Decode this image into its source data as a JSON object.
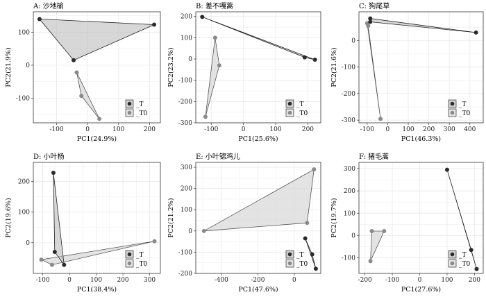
{
  "colors": {
    "T_point": "#2b2b2b",
    "T0_point": "#8a8a8a",
    "T_hull_fill": "#bdbdbd",
    "T0_hull_fill": "#d9d9d9",
    "grid": "#ebebeb"
  },
  "chart_data": [
    {
      "type": "scatter",
      "title": "A: 沙地榆",
      "xlabel": "PC1(24.9%)",
      "ylabel": "PC2(21.9%)",
      "xlim": [
        -175,
        235
      ],
      "ylim": [
        -175,
        162
      ],
      "xticks": [
        -100,
        0,
        100,
        200
      ],
      "yticks": [
        -100,
        0,
        100
      ],
      "legend": "bottom-right",
      "series": [
        {
          "name": "_T",
          "points": [
            [
              -155,
              140
            ],
            [
              215,
              123
            ],
            [
              -45,
              15
            ]
          ]
        },
        {
          "name": "_T0",
          "points": [
            [
              -35,
              -22
            ],
            [
              -20,
              -93
            ],
            [
              38,
              -163
            ]
          ]
        }
      ]
    },
    {
      "type": "scatter",
      "title": "B: 差不嘎蒿",
      "xlabel": "PC1(25.6%)",
      "ylabel": "PC2(23.2%)",
      "xlim": [
        -148,
        240
      ],
      "ylim": [
        -300,
        222
      ],
      "xticks": [
        -100,
        0,
        100,
        200
      ],
      "yticks": [
        -300,
        -200,
        -100,
        0,
        100,
        200
      ],
      "legend": "bottom-right",
      "series": [
        {
          "name": "_T",
          "points": [
            [
              -128,
              198
            ],
            [
              190,
              8
            ],
            [
              222,
              -3
            ]
          ]
        },
        {
          "name": "_T0",
          "points": [
            [
              -88,
              100
            ],
            [
              -75,
              -30
            ],
            [
              -118,
              -272
            ]
          ]
        }
      ]
    },
    {
      "type": "scatter",
      "title": "C: 狗尾草",
      "xlabel": "PC1(46.3%)",
      "ylabel": "PC2(21.6%)",
      "xlim": [
        -140,
        465
      ],
      "ylim": [
        -310,
        108
      ],
      "xticks": [
        -100,
        0,
        100,
        200,
        300,
        400
      ],
      "yticks": [
        -300,
        -200,
        -100,
        0
      ],
      "legend": "bottom-right",
      "series": [
        {
          "name": "_T",
          "points": [
            [
              -85,
              83
            ],
            [
              -85,
              70
            ],
            [
              430,
              30
            ]
          ]
        },
        {
          "name": "_T0",
          "points": [
            [
              -100,
              65
            ],
            [
              -95,
              55
            ],
            [
              -35,
              -295
            ]
          ]
        }
      ]
    },
    {
      "type": "scatter",
      "title": "D: 小叶杨",
      "xlabel": "PC1(38.4%)",
      "ylabel": "PC2(19.6%)",
      "xlim": [
        -135,
        340
      ],
      "ylim": [
        -100,
        262
      ],
      "xticks": [
        -100,
        0,
        100,
        200,
        300
      ],
      "yticks": [
        0,
        100,
        200
      ],
      "legend": "bottom-right",
      "series": [
        {
          "name": "_T",
          "points": [
            [
              -60,
              228
            ],
            [
              -55,
              -30
            ],
            [
              -20,
              -72
            ]
          ]
        },
        {
          "name": "_T0",
          "points": [
            [
              -105,
              -55
            ],
            [
              -65,
              -72
            ],
            [
              318,
              5
            ]
          ]
        }
      ]
    },
    {
      "type": "scatter",
      "title": "E: 小叶锦鸡儿",
      "xlabel": "PC1(47.6%)",
      "ylabel": "PC2(21.2%)",
      "xlim": [
        -540,
        145
      ],
      "ylim": [
        -200,
        323
      ],
      "xticks": [
        -400,
        -200,
        0
      ],
      "yticks": [
        -200,
        -100,
        0,
        100,
        200,
        300
      ],
      "legend": "bottom-right",
      "series": [
        {
          "name": "_T",
          "points": [
            [
              60,
              -35
            ],
            [
              98,
              -110
            ],
            [
              118,
              -178
            ]
          ]
        },
        {
          "name": "_T0",
          "points": [
            [
              -495,
              0
            ],
            [
              70,
              38
            ],
            [
              108,
              290
            ]
          ]
        }
      ]
    },
    {
      "type": "scatter",
      "title": "F: 猪毛蒿",
      "xlabel": "PC1(27.6%)",
      "ylabel": "PC2(19.7%)",
      "xlim": [
        -222,
        232
      ],
      "ylim": [
        -170,
        328
      ],
      "xticks": [
        -200,
        -100,
        0,
        100,
        200
      ],
      "yticks": [
        -100,
        0,
        100,
        200,
        300
      ],
      "legend": "bottom-right",
      "series": [
        {
          "name": "_T",
          "points": [
            [
              100,
              295
            ],
            [
              188,
              -65
            ],
            [
              208,
              -150
            ]
          ]
        },
        {
          "name": "_T0",
          "points": [
            [
              -180,
              -115
            ],
            [
              -175,
              20
            ],
            [
              -130,
              20
            ]
          ]
        }
      ]
    }
  ]
}
